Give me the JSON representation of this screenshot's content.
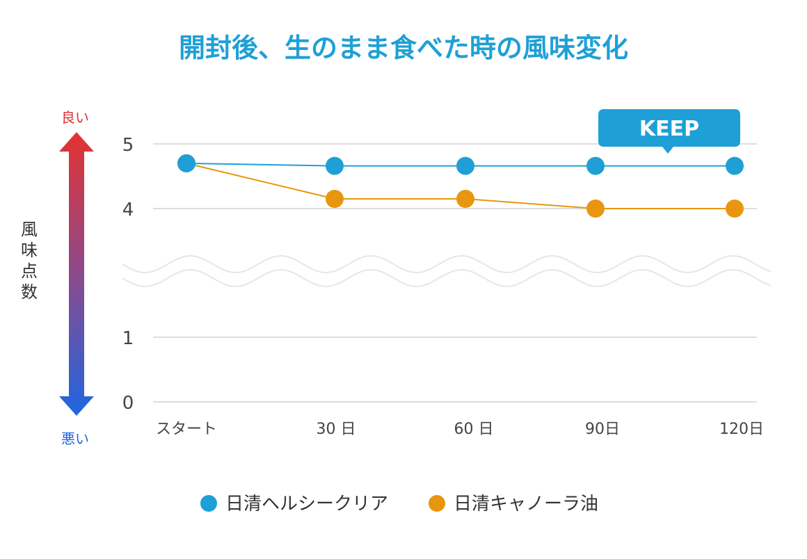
{
  "chart_data": {
    "type": "line",
    "title": "開封後、生のまま食べた時の風味変化",
    "categories": [
      "スタート",
      "30 日",
      "60 日",
      "90日",
      "120日"
    ],
    "series": [
      {
        "name": "日清ヘルシークリア",
        "color": "#1ea0d6",
        "values": [
          4.7,
          4.66,
          4.66,
          4.66,
          4.66
        ]
      },
      {
        "name": "日清キャノーラ油",
        "color": "#e8960f",
        "values": [
          4.7,
          4.15,
          4.15,
          4.0,
          4.0
        ]
      }
    ],
    "yticks": [
      "0",
      "1",
      "4",
      "5"
    ],
    "axis_break": {
      "between": [
        1,
        4
      ]
    },
    "ylabel": "風味点数",
    "scale_top_label": "良い",
    "scale_bottom_label": "悪い",
    "callout": {
      "text": "KEEP",
      "series": 0
    },
    "legend_position": "bottom",
    "grid": true
  },
  "colors": {
    "title": "#1ea0d6",
    "grid": "#dddddd",
    "axis_text": "#444444",
    "good": "#e03131",
    "bad": "#1f66e0",
    "callout_bg": "#1ea0d6"
  }
}
